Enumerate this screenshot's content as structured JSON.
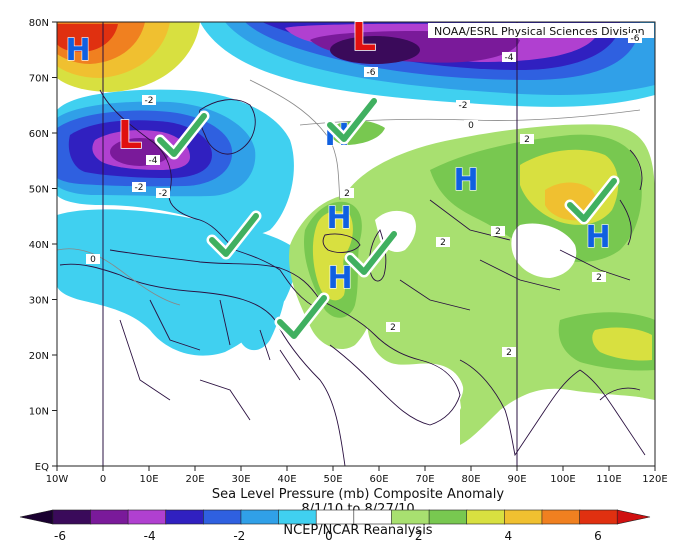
{
  "credit": "NOAA/ESRL Physical Sciences Division",
  "caption": {
    "line1": "Sea Level Pressure (mb) Composite Anomaly",
    "line2": "8/1/10  to  8/27/10",
    "line3": "NCEP/NCAR Reanalysis"
  },
  "axes": {
    "x_ticks": [
      "10W",
      "0",
      "10E",
      "20E",
      "30E",
      "40E",
      "50E",
      "60E",
      "70E",
      "80E",
      "90E",
      "100E",
      "110E",
      "120E"
    ],
    "y_ticks": [
      "EQ",
      "10N",
      "20N",
      "30N",
      "40N",
      "50N",
      "60N",
      "70N",
      "80N"
    ]
  },
  "colorbar": {
    "labels": [
      "-6",
      "-4",
      "-2",
      "0",
      "2",
      "4",
      "6"
    ],
    "colors": [
      "#3a0a5a",
      "#7a1a9a",
      "#b040d0",
      "#3020c0",
      "#2f60e0",
      "#30a0e8",
      "#40d0f0",
      "#ffffff",
      "#ffffff",
      "#a8e070",
      "#78c850",
      "#d8e040",
      "#f0c030",
      "#f08020",
      "#e03010"
    ]
  },
  "map": {
    "region": "10W-120E, EQ-80N",
    "contour_labels": [
      "-2",
      "-4",
      "-6",
      "-2",
      "-4",
      "-2",
      "-6",
      "-2",
      "0",
      "2",
      "2",
      "2",
      "2",
      "2",
      "2",
      "2",
      "0"
    ],
    "markers": [
      {
        "letter": "H",
        "color": "#1060e0"
      },
      {
        "letter": "L",
        "color": "#e01010"
      },
      {
        "letter": "L",
        "color": "#e01010"
      },
      {
        "letter": "H",
        "color": "#1060e0"
      },
      {
        "letter": "H",
        "color": "#1060e0"
      },
      {
        "letter": "H",
        "color": "#1060e0"
      },
      {
        "letter": "H",
        "color": "#1060e0"
      },
      {
        "letter": "H",
        "color": "#1060e0"
      }
    ],
    "checkmark_color": "#40b060"
  }
}
